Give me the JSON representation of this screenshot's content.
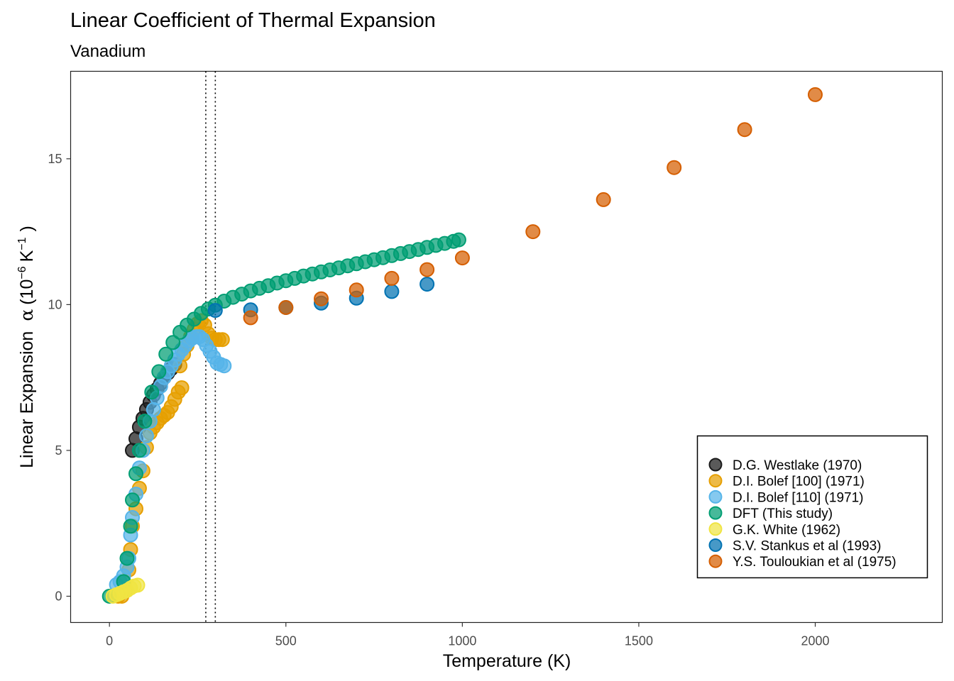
{
  "chart_data": {
    "type": "scatter",
    "title": "Linear Coefficient of Thermal Expansion",
    "subtitle": "Vanadium",
    "xlabel": "Temperature (K)",
    "ylabel": "Linear Expansion",
    "ylabel_symbol": "α",
    "ylabel_unit_base": "10",
    "ylabel_unit_exp1": "−6",
    "ylabel_unit_k": "K",
    "ylabel_unit_exp2": "−1",
    "xlim": [
      -110,
      2360
    ],
    "ylim": [
      -0.9,
      18.0
    ],
    "xticks": [
      0,
      500,
      1000,
      1500,
      2000
    ],
    "xtick_labels": [
      "0",
      "500",
      "1000",
      "1500",
      "2000"
    ],
    "yticks": [
      0,
      5,
      10,
      15
    ],
    "ytick_labels": [
      "0",
      "5",
      "10",
      "15"
    ],
    "grid": false,
    "legend_position": "bottom-right",
    "vlines": [
      273,
      300
    ],
    "series": [
      {
        "name": "D.G. Westlake (1970)",
        "color": "#1a1a1a",
        "points": [
          [
            65,
            5.0
          ],
          [
            75,
            5.4
          ],
          [
            85,
            5.8
          ],
          [
            95,
            6.1
          ],
          [
            105,
            6.4
          ],
          [
            115,
            6.65
          ],
          [
            125,
            6.9
          ],
          [
            135,
            7.1
          ],
          [
            145,
            7.3
          ],
          [
            155,
            7.5
          ],
          [
            165,
            7.65
          ],
          [
            175,
            7.8
          ],
          [
            185,
            7.95
          ]
        ]
      },
      {
        "name": "D.I. Bolef [100] (1971)",
        "color": "#E69F00",
        "points": [
          [
            25,
            0.0
          ],
          [
            35,
            0.0
          ],
          [
            45,
            0.2
          ],
          [
            55,
            0.9
          ],
          [
            60,
            1.6
          ],
          [
            65,
            2.4
          ],
          [
            75,
            3.0
          ],
          [
            85,
            3.7
          ],
          [
            95,
            4.3
          ],
          [
            105,
            5.1
          ],
          [
            115,
            5.6
          ],
          [
            125,
            5.8
          ],
          [
            135,
            5.95
          ],
          [
            145,
            6.1
          ],
          [
            155,
            6.2
          ],
          [
            165,
            6.3
          ],
          [
            175,
            6.5
          ],
          [
            185,
            6.75
          ],
          [
            195,
            7.0
          ],
          [
            205,
            7.15
          ],
          [
            200,
            7.9
          ],
          [
            210,
            8.3
          ],
          [
            220,
            8.6
          ],
          [
            230,
            8.9
          ],
          [
            240,
            9.15
          ],
          [
            250,
            9.35
          ],
          [
            260,
            9.45
          ],
          [
            270,
            9.3
          ],
          [
            280,
            9.0
          ],
          [
            290,
            8.85
          ],
          [
            300,
            8.8
          ],
          [
            310,
            8.8
          ],
          [
            320,
            8.8
          ]
        ]
      },
      {
        "name": "D.I. Bolef [110] (1971)",
        "color": "#56B4E9",
        "points": [
          [
            20,
            0.4
          ],
          [
            30,
            0.5
          ],
          [
            40,
            0.7
          ],
          [
            50,
            1.0
          ],
          [
            55,
            1.3
          ],
          [
            60,
            2.1
          ],
          [
            65,
            2.7
          ],
          [
            75,
            3.5
          ],
          [
            85,
            4.4
          ],
          [
            95,
            5.0
          ],
          [
            105,
            5.5
          ],
          [
            115,
            6.0
          ],
          [
            125,
            6.4
          ],
          [
            135,
            6.8
          ],
          [
            145,
            7.2
          ],
          [
            155,
            7.5
          ],
          [
            165,
            7.7
          ],
          [
            175,
            7.9
          ],
          [
            185,
            8.1
          ],
          [
            195,
            8.3
          ],
          [
            205,
            8.45
          ],
          [
            215,
            8.6
          ],
          [
            225,
            8.75
          ],
          [
            235,
            8.85
          ],
          [
            245,
            8.9
          ],
          [
            255,
            8.9
          ],
          [
            265,
            8.8
          ],
          [
            275,
            8.6
          ],
          [
            285,
            8.4
          ],
          [
            295,
            8.2
          ],
          [
            305,
            8.0
          ],
          [
            315,
            7.95
          ],
          [
            325,
            7.9
          ]
        ]
      },
      {
        "name": "DFT (This study)",
        "color": "#009E73",
        "points": [
          [
            0,
            0.0
          ],
          [
            40,
            0.5
          ],
          [
            50,
            1.3
          ],
          [
            60,
            2.4
          ],
          [
            65,
            3.3
          ],
          [
            75,
            4.2
          ],
          [
            85,
            5.0
          ],
          [
            100,
            6.0
          ],
          [
            120,
            7.0
          ],
          [
            140,
            7.7
          ],
          [
            160,
            8.3
          ],
          [
            180,
            8.7
          ],
          [
            200,
            9.05
          ],
          [
            220,
            9.3
          ],
          [
            240,
            9.5
          ],
          [
            260,
            9.7
          ],
          [
            280,
            9.85
          ],
          [
            300,
            9.98
          ],
          [
            325,
            10.12
          ],
          [
            350,
            10.25
          ],
          [
            375,
            10.36
          ],
          [
            400,
            10.47
          ],
          [
            425,
            10.56
          ],
          [
            450,
            10.65
          ],
          [
            475,
            10.74
          ],
          [
            500,
            10.82
          ],
          [
            525,
            10.9
          ],
          [
            550,
            10.98
          ],
          [
            575,
            11.05
          ],
          [
            600,
            11.12
          ],
          [
            625,
            11.19
          ],
          [
            650,
            11.26
          ],
          [
            675,
            11.33
          ],
          [
            700,
            11.4
          ],
          [
            725,
            11.47
          ],
          [
            750,
            11.54
          ],
          [
            775,
            11.61
          ],
          [
            800,
            11.68
          ],
          [
            825,
            11.75
          ],
          [
            850,
            11.82
          ],
          [
            875,
            11.89
          ],
          [
            900,
            11.96
          ],
          [
            925,
            12.03
          ],
          [
            950,
            12.1
          ],
          [
            975,
            12.17
          ],
          [
            990,
            12.22
          ]
        ]
      },
      {
        "name": "G.K. White (1962)",
        "color": "#F0E442",
        "points": [
          [
            10,
            0.0
          ],
          [
            20,
            0.05
          ],
          [
            30,
            0.1
          ],
          [
            40,
            0.15
          ],
          [
            50,
            0.2
          ],
          [
            60,
            0.28
          ],
          [
            70,
            0.35
          ],
          [
            80,
            0.38
          ]
        ]
      },
      {
        "name": "S.V. Stankus et al (1993)",
        "color": "#0072B2",
        "points": [
          [
            300,
            9.8
          ],
          [
            400,
            9.82
          ],
          [
            500,
            9.9
          ],
          [
            600,
            10.05
          ],
          [
            700,
            10.22
          ],
          [
            800,
            10.45
          ],
          [
            900,
            10.7
          ]
        ]
      },
      {
        "name": "Y.S. Touloukian et al (1975)",
        "color": "#D55E00",
        "points": [
          [
            400,
            9.55
          ],
          [
            500,
            9.9
          ],
          [
            600,
            10.2
          ],
          [
            700,
            10.5
          ],
          [
            800,
            10.9
          ],
          [
            900,
            11.2
          ],
          [
            1000,
            11.6
          ],
          [
            1200,
            12.5
          ],
          [
            1400,
            13.6
          ],
          [
            1600,
            14.7
          ],
          [
            1800,
            16.0
          ],
          [
            2000,
            17.2
          ]
        ]
      }
    ]
  }
}
